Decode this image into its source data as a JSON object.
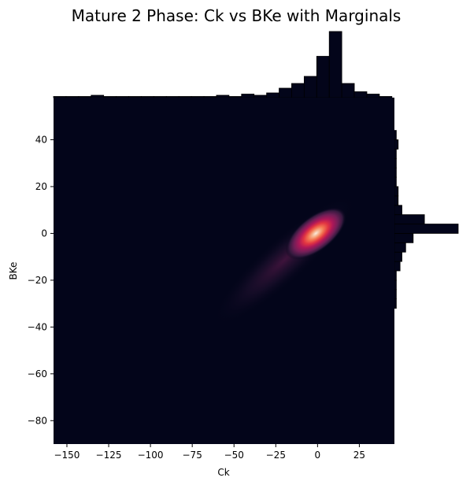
{
  "chart_data": {
    "type": "heatmap",
    "title": "Mature 2 Phase: Ck vs BKe with Marginals",
    "xlabel": "Ck",
    "ylabel": "BKe",
    "xlim": [
      -158,
      46
    ],
    "ylim": [
      -90,
      58
    ],
    "xticks": [
      -150,
      -125,
      -100,
      -75,
      -50,
      -25,
      0,
      25
    ],
    "yticks": [
      -80,
      -60,
      -40,
      -20,
      0,
      20,
      40
    ],
    "grid": false,
    "colormap": "rocket",
    "density_center": {
      "x": -1,
      "y": 0
    },
    "colors": {
      "background": "#03051a",
      "hist_fill": "#03051a",
      "hist_edge": "#000000"
    },
    "x_marginal": {
      "bin_edges": [
        -158,
        -150.5,
        -143,
        -135.5,
        -128,
        -120.5,
        -113,
        -105.5,
        -98,
        -90.5,
        -83,
        -75.5,
        -68,
        -60.5,
        -53,
        -45.5,
        -38,
        -30.5,
        -23,
        -15.5,
        -8,
        -0.5,
        7,
        14.5,
        22,
        29.5,
        37,
        44.5
      ],
      "counts": [
        1,
        1,
        1,
        2,
        1,
        1,
        1,
        1,
        1,
        1,
        1,
        1,
        1,
        2,
        1,
        3,
        2,
        4,
        8,
        12,
        18,
        35,
        56,
        12,
        5,
        3,
        1
      ]
    },
    "y_marginal": {
      "bin_edges": [
        -32,
        -28,
        -24,
        -20,
        -16,
        -12,
        -8,
        -4,
        0,
        4,
        8,
        12,
        16,
        20,
        24,
        28,
        32,
        36,
        40,
        44
      ],
      "counts": [
        1,
        1,
        1,
        1,
        3,
        4,
        6,
        10,
        34,
        16,
        4,
        2,
        2,
        1,
        1,
        1,
        1,
        2,
        1
      ]
    }
  }
}
